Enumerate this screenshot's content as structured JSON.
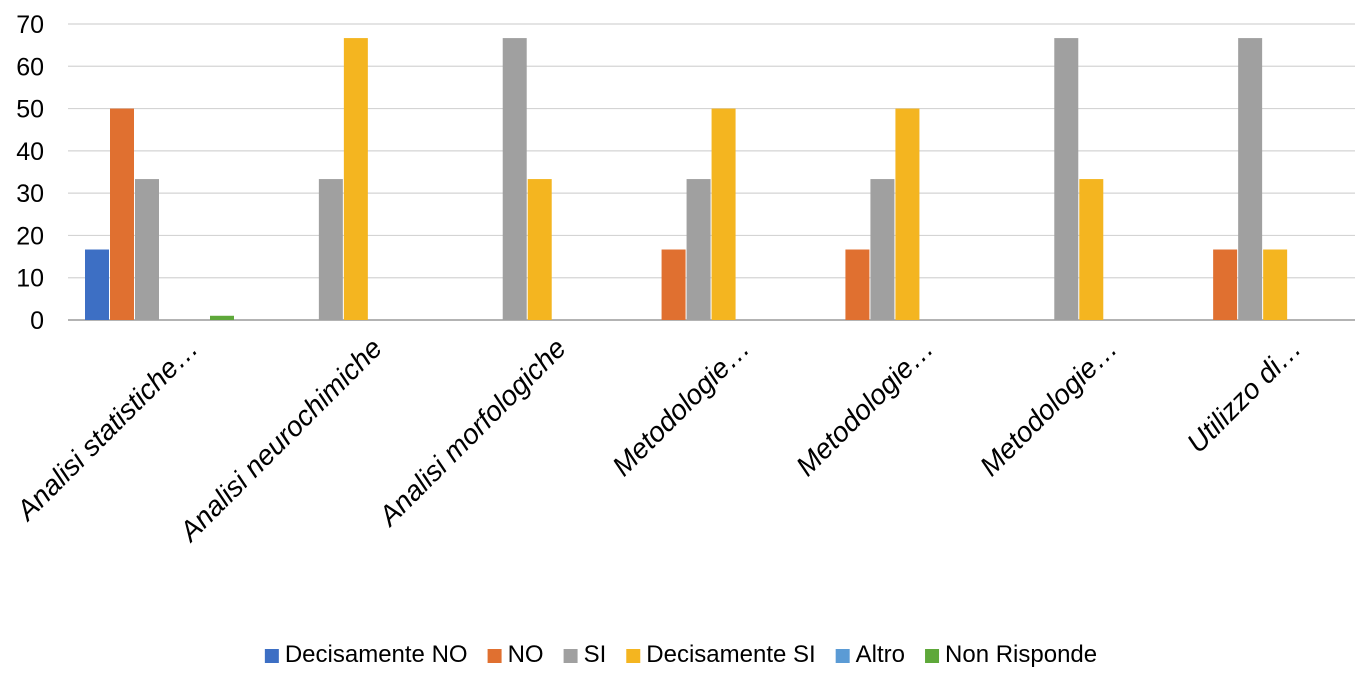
{
  "chart_data": {
    "type": "bar",
    "title": "",
    "xlabel": "",
    "ylabel": "",
    "ylim": [
      0,
      70
    ],
    "y_ticks": [
      "0",
      "10",
      "20",
      "30",
      "40",
      "50",
      "60",
      "70"
    ],
    "y_tick_values": [
      0,
      10,
      20,
      30,
      40,
      50,
      60,
      70
    ],
    "grid": "horizontal",
    "legend_position": "bottom",
    "categories": [
      "Analisi statistiche…",
      "Analisi neurochimiche",
      "Analisi morfologiche",
      "Metodologie…",
      "Metodologie…",
      "Metodologie…",
      "Utilizzo di…"
    ],
    "series": [
      {
        "name": "Decisamente NO",
        "color": "#3d6fc4",
        "values": [
          16.67,
          0,
          0,
          0,
          0,
          0,
          0
        ]
      },
      {
        "name": "NO",
        "color": "#e07030",
        "values": [
          50,
          0,
          0,
          16.67,
          16.67,
          0,
          16.67
        ]
      },
      {
        "name": "SI",
        "color": "#a0a0a0",
        "values": [
          33.33,
          33.33,
          66.67,
          33.33,
          33.33,
          66.67,
          66.67
        ]
      },
      {
        "name": "Decisamente SI",
        "color": "#f4b520",
        "values": [
          0,
          66.67,
          33.33,
          50,
          50,
          33.33,
          16.67
        ]
      },
      {
        "name": "Altro",
        "color": "#5b9bd5",
        "values": [
          0,
          0,
          0,
          0,
          0,
          0,
          0
        ]
      },
      {
        "name": "Non Risponde",
        "color": "#5ea83a",
        "values": [
          1,
          0,
          0,
          0,
          0,
          0,
          0
        ]
      }
    ]
  }
}
